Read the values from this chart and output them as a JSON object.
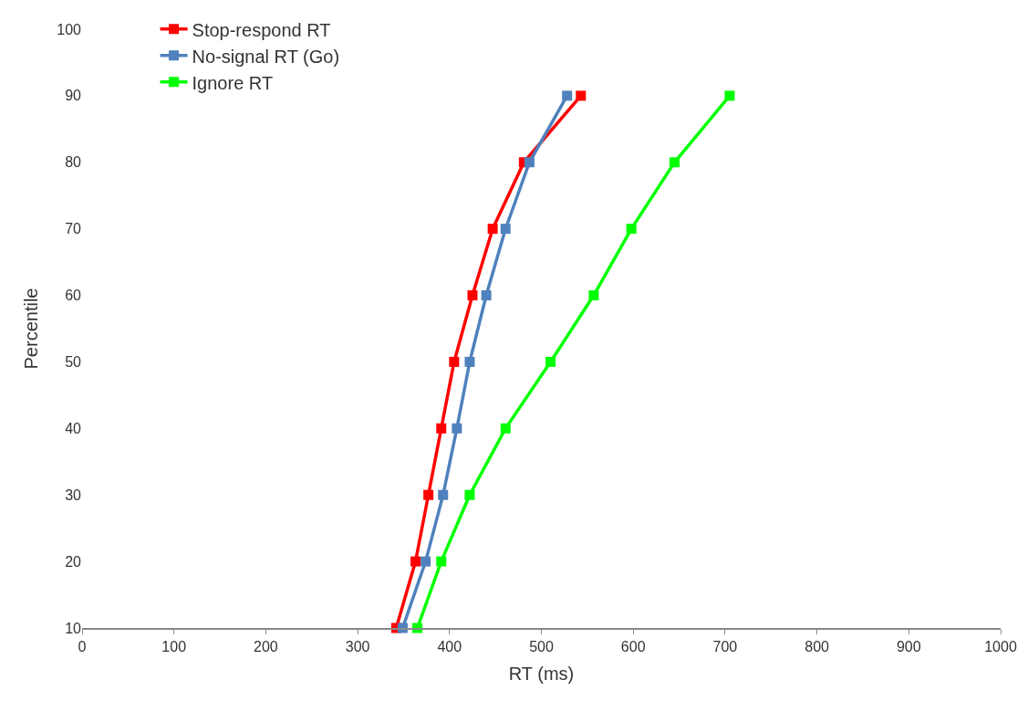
{
  "chart_data": {
    "type": "line",
    "xlabel": "RT (ms)",
    "ylabel": "Percentile",
    "xlim": [
      0,
      1000
    ],
    "xticks": [
      0,
      100,
      200,
      300,
      400,
      500,
      600,
      700,
      800,
      900,
      1000
    ],
    "ylim": [
      10,
      100
    ],
    "yticks": [
      10,
      20,
      30,
      40,
      50,
      60,
      70,
      80,
      90,
      100
    ],
    "legend": "top left",
    "marker": "square",
    "line_style": "solid",
    "series": [
      {
        "name": "Stop-respond RT",
        "color": "#ff0000",
        "x": [
          342,
          363,
          377,
          391,
          405,
          425,
          447,
          481,
          543
        ],
        "values": [
          10,
          20,
          30,
          40,
          50,
          60,
          70,
          80,
          90
        ]
      },
      {
        "name": "No-signal RT (Go)",
        "color": "#4f81bd",
        "x": [
          349,
          374,
          393,
          408,
          422,
          440,
          461,
          487,
          528
        ],
        "values": [
          10,
          20,
          30,
          40,
          50,
          60,
          70,
          80,
          90
        ]
      },
      {
        "name": "Ignore RT",
        "color": "#00ff00",
        "x": [
          365,
          391,
          422,
          461,
          510,
          557,
          598,
          645,
          705
        ],
        "values": [
          10,
          20,
          30,
          40,
          50,
          60,
          70,
          80,
          90
        ]
      }
    ]
  }
}
